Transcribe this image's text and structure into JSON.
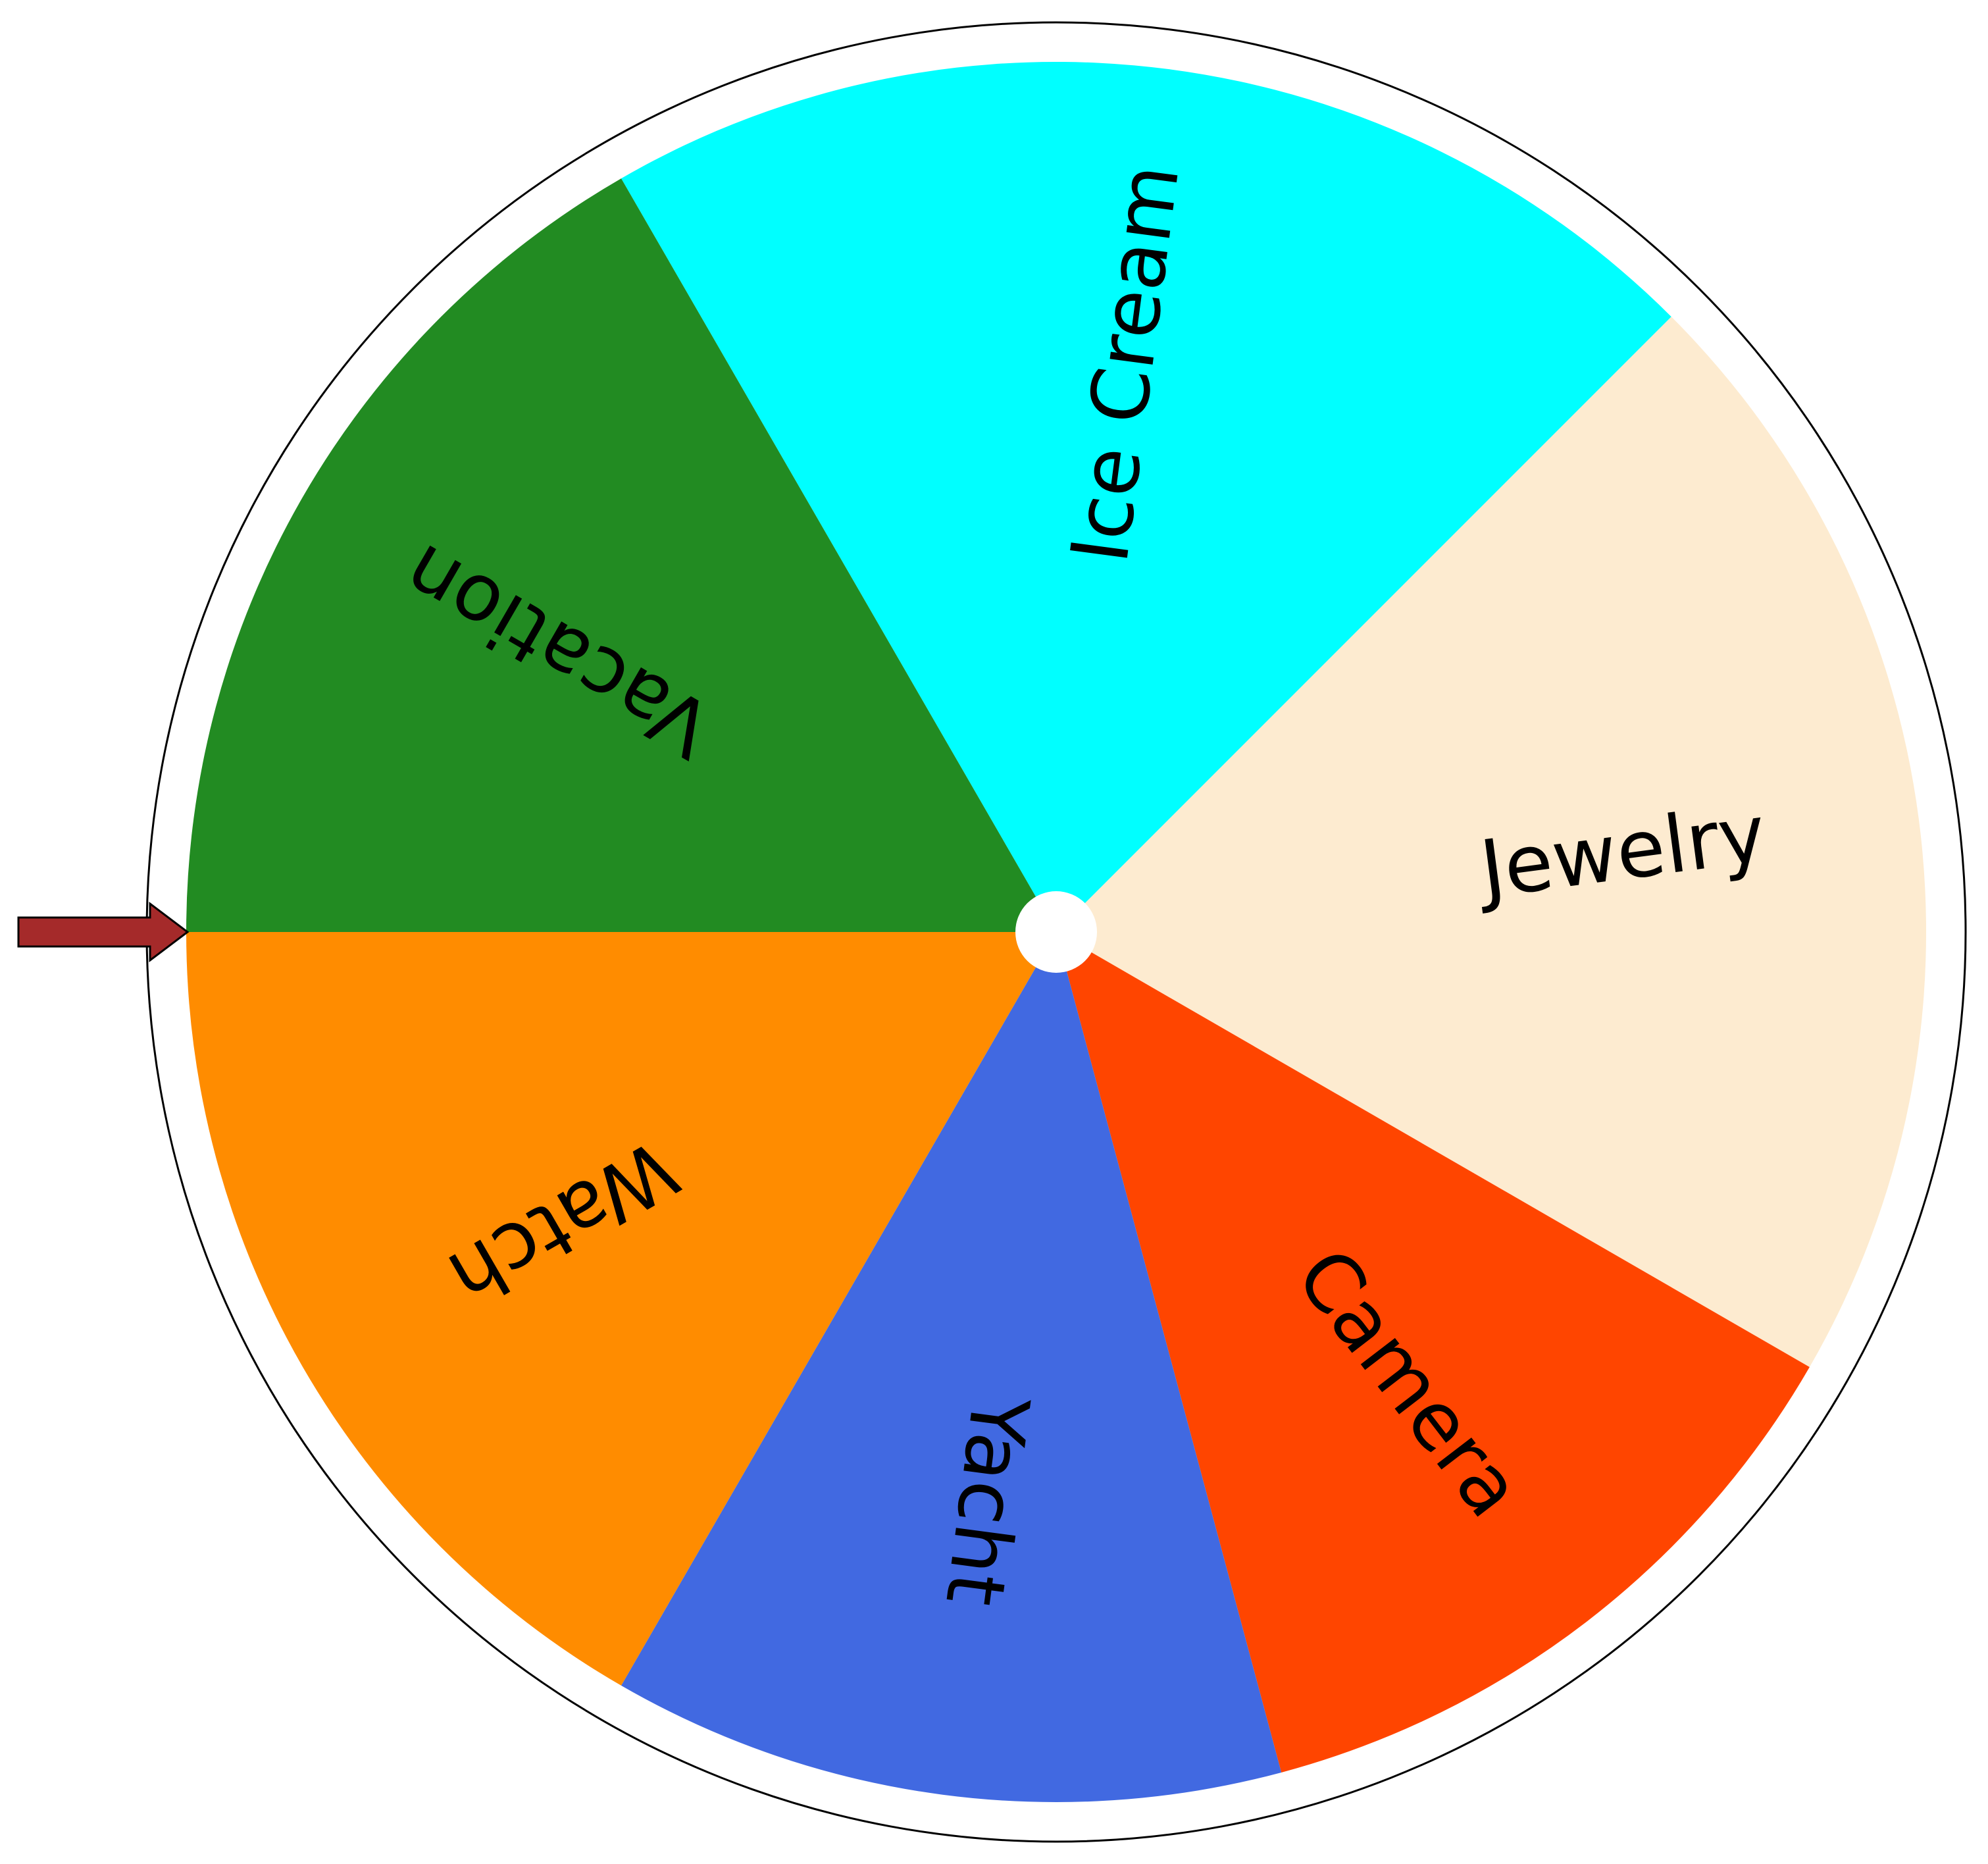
{
  "wheel": {
    "segments": [
      {
        "label": "Ice Cream",
        "color": "#00FFFF"
      },
      {
        "label": "Jewelry",
        "color": "#FDEBD0"
      },
      {
        "label": "Camera",
        "color": "#FF4500"
      },
      {
        "label": "Yacht",
        "color": "#4169E1"
      },
      {
        "label": "Watch",
        "color": "#FF8C00"
      },
      {
        "label": "Vacation",
        "color": "#228B22"
      }
    ],
    "pointer_color": "#A52A2A",
    "ring_color": "#FFFFFF",
    "outline_color": "#000000",
    "hub_color": "#FFFFFF"
  }
}
